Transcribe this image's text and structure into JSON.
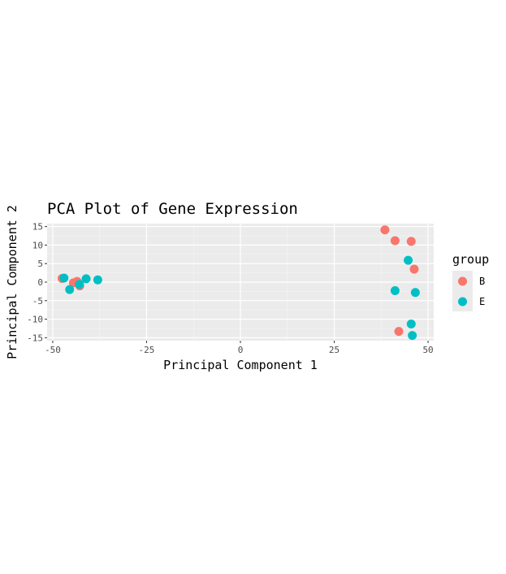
{
  "chart_data": {
    "type": "scatter",
    "title": "PCA Plot of Gene Expression",
    "xlabel": "Principal Component 1",
    "ylabel": "Principal Component 2",
    "xlim": [
      -51.5,
      51.5
    ],
    "ylim": [
      -15.8,
      15.8
    ],
    "x_ticks": [
      -50,
      -25,
      0,
      25,
      50
    ],
    "y_ticks": [
      -15,
      -10,
      -5,
      0,
      5,
      10,
      15
    ],
    "x_tick_labels": [
      "-50",
      "-25",
      "0",
      "25",
      "50"
    ],
    "y_tick_labels": [
      "-15",
      "-10",
      "-5",
      "0",
      "5",
      "10",
      "15"
    ],
    "grid": true,
    "legend": {
      "title": "group",
      "position": "right"
    },
    "series": [
      {
        "name": "B",
        "color": "#F8766D",
        "points": [
          {
            "x": 38.5,
            "y": 14.1
          },
          {
            "x": 41.2,
            "y": 11.2
          },
          {
            "x": 45.5,
            "y": 11.0
          },
          {
            "x": 46.3,
            "y": 3.5
          },
          {
            "x": 42.2,
            "y": -13.3
          },
          {
            "x": -47.5,
            "y": 1.0
          },
          {
            "x": -44.5,
            "y": -0.2
          },
          {
            "x": -43.5,
            "y": 0.2
          },
          {
            "x": -42.8,
            "y": -1.0
          }
        ]
      },
      {
        "name": "E",
        "color": "#00BFC4",
        "points": [
          {
            "x": 44.7,
            "y": 5.9
          },
          {
            "x": 41.2,
            "y": -2.3
          },
          {
            "x": 46.6,
            "y": -2.8
          },
          {
            "x": 45.5,
            "y": -11.3
          },
          {
            "x": 45.8,
            "y": -14.4
          },
          {
            "x": -47.0,
            "y": 1.1
          },
          {
            "x": -45.5,
            "y": -2.0
          },
          {
            "x": -42.9,
            "y": -0.6
          },
          {
            "x": -41.1,
            "y": 0.9
          },
          {
            "x": -38.0,
            "y": 0.6
          }
        ]
      }
    ]
  }
}
